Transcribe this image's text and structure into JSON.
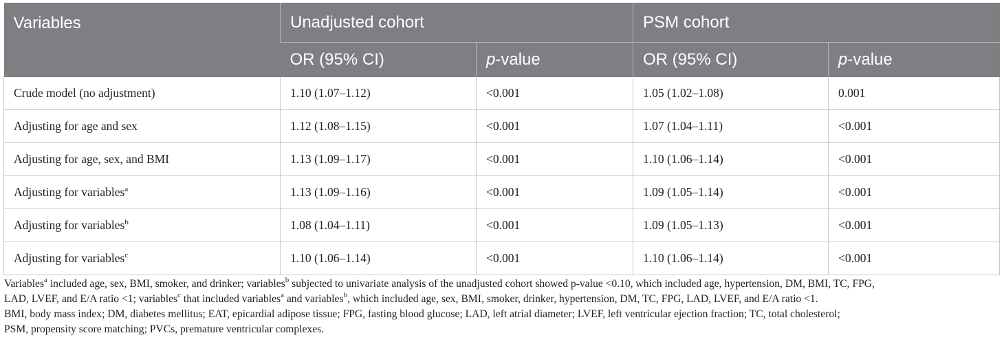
{
  "table": {
    "header": {
      "variables": "Variables",
      "group_unadjusted": "Unadjusted cohort",
      "group_psm": "PSM cohort",
      "or_label": "OR (95% CI)",
      "p_italic": "p",
      "p_suffix": "-value"
    },
    "rows": [
      {
        "label": "Crude model (no adjustment)",
        "sup": "",
        "u_or": "1.10 (1.07–1.12)",
        "u_p": "<0.001",
        "p_or": "1.05 (1.02–1.08)",
        "p_p": "0.001"
      },
      {
        "label": "Adjusting for age and sex",
        "sup": "",
        "u_or": "1.12 (1.08–1.15)",
        "u_p": "<0.001",
        "p_or": "1.07 (1.04–1.11)",
        "p_p": "<0.001"
      },
      {
        "label": "Adjusting for age, sex, and BMI",
        "sup": "",
        "u_or": "1.13 (1.09–1.17)",
        "u_p": "<0.001",
        "p_or": "1.10 (1.06–1.14)",
        "p_p": "<0.001"
      },
      {
        "label": "Adjusting for variables",
        "sup": "a",
        "u_or": "1.13 (1.09–1.16)",
        "u_p": "<0.001",
        "p_or": "1.09 (1.05–1.14)",
        "p_p": "<0.001"
      },
      {
        "label": "Adjusting for variables",
        "sup": "b",
        "u_or": "1.08 (1.04–1.11)",
        "u_p": "<0.001",
        "p_or": "1.09 (1.05–1.13)",
        "p_p": "<0.001"
      },
      {
        "label": "Adjusting for variables",
        "sup": "c",
        "u_or": "1.10 (1.06–1.14)",
        "u_p": "<0.001",
        "p_or": "1.10 (1.06–1.14)",
        "p_p": "<0.001"
      }
    ]
  },
  "footnote": {
    "line1": {
      "t1": "Variables",
      "s1": "a",
      "t2": " included age, sex, BMI, smoker, and drinker; variables",
      "s2": "b",
      "t3": " subjected to univariate analysis of the unadjusted cohort showed p-value <0.10, which included age, hypertension, DM, BMI, TC, FPG,"
    },
    "line2": {
      "t1": "LAD, LVEF, and E/A ratio <1; variables",
      "s1": "c",
      "t2": " that included variables",
      "s2": "a",
      "t3": " and variables",
      "s3": "b",
      "t4": ", which included age, sex, BMI, smoker, drinker, hypertension, DM, TC, FPG, LAD, LVEF, and E/A ratio <1."
    },
    "line3": "BMI, body mass index; DM, diabetes mellitus; EAT, epicardial adipose tissue; FPG, fasting blood glucose; LAD, left atrial diameter; LVEF, left ventricular ejection fraction; TC, total cholesterol;",
    "line4": "PSM, propensity score matching; PVCs, premature ventricular complexes."
  }
}
